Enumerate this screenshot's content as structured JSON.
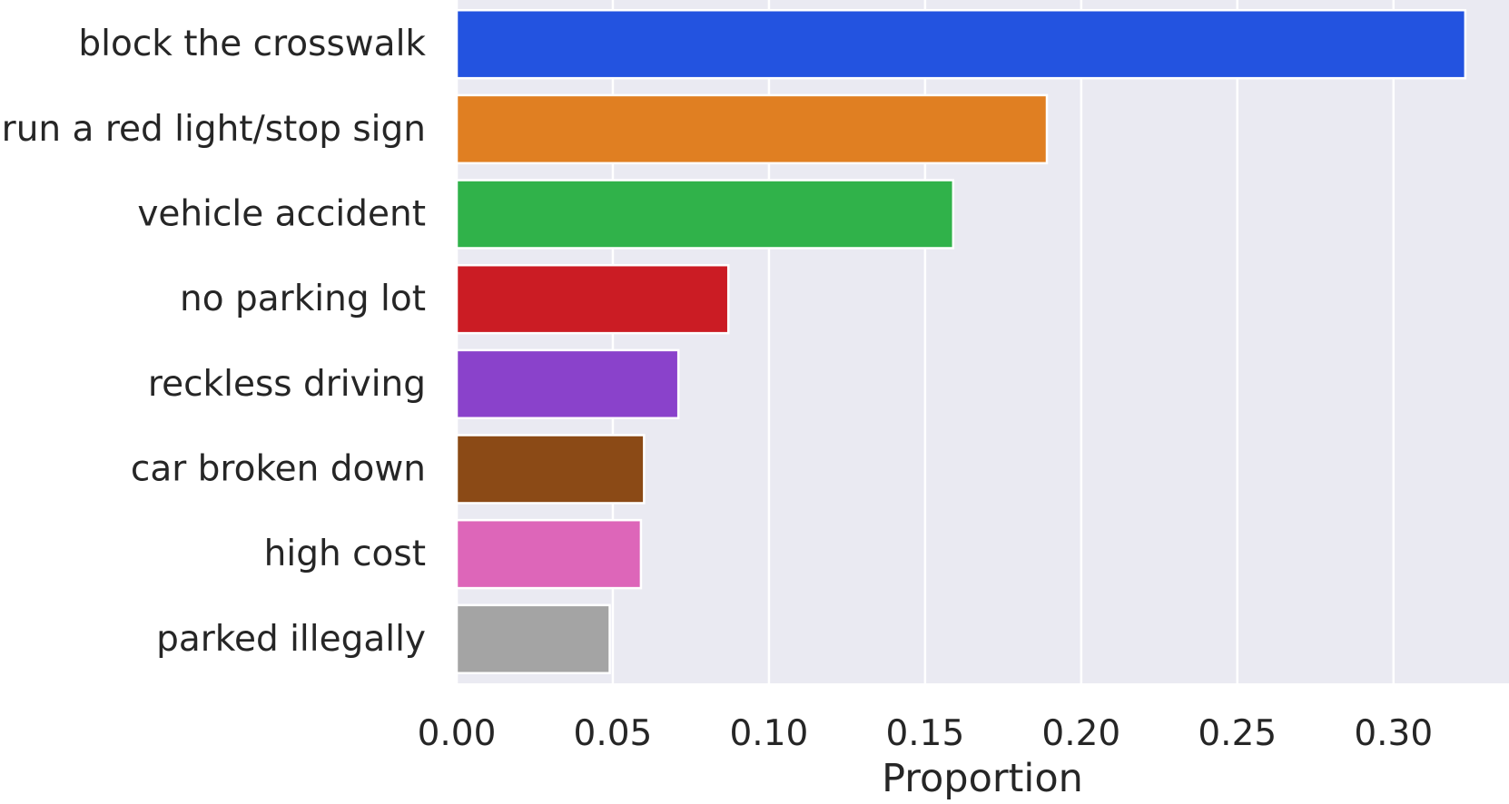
{
  "chart_data": {
    "type": "bar",
    "orientation": "horizontal",
    "categories": [
      "block the crosswalk",
      "run a red light/stop sign",
      "vehicle accident",
      "no parking lot",
      "reckless driving",
      "car broken down",
      "high cost",
      "parked illegally"
    ],
    "values": [
      0.323,
      0.189,
      0.159,
      0.087,
      0.071,
      0.06,
      0.059,
      0.049
    ],
    "colors": [
      "#2353e0",
      "#e07f22",
      "#30b24a",
      "#cb1c24",
      "#8a42cb",
      "#8b4a16",
      "#dd66b9",
      "#a4a4a4"
    ],
    "xlabel": "Proportion",
    "ylabel": "",
    "xlim": [
      0,
      0.337
    ],
    "xticks": [
      "0.00",
      "0.05",
      "0.10",
      "0.15",
      "0.20",
      "0.25",
      "0.30"
    ],
    "grid": true,
    "background": "#eaeaf2",
    "grid_color": "#ffffff"
  }
}
